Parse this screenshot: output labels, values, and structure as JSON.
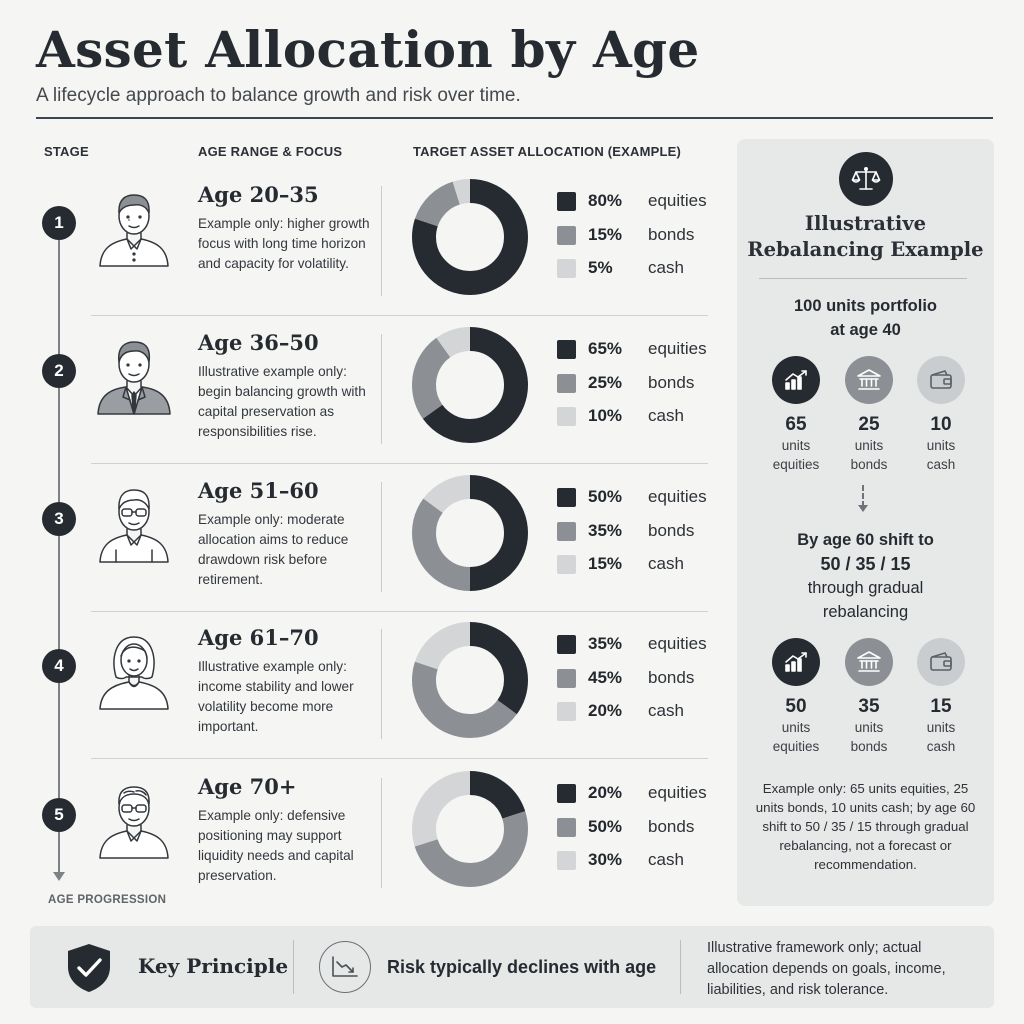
{
  "header": {
    "title": "Asset Allocation by Age",
    "subtitle": "A lifecycle approach to balance growth and risk over time."
  },
  "columns": {
    "stage": "STAGE",
    "age_range": "AGE RANGE & FOCUS",
    "allocation": "TARGET ASSET ALLOCATION (EXAMPLE)"
  },
  "timeline_label": "AGE PROGRESSION",
  "colors": {
    "equities": "#252b31",
    "bonds": "#8c9095",
    "cash": "#d3d5d7"
  },
  "stages": [
    {
      "num": "1",
      "age": "Age 20–35",
      "desc": "Example only: higher growth focus with long time horizon and capacity for volatility.",
      "equities": 80,
      "bonds": 15,
      "cash": 5,
      "avatar": "young-man-icon",
      "labels": {
        "equities": "80%",
        "bonds": "15%",
        "cash": "5%"
      }
    },
    {
      "num": "2",
      "age": "Age 36–50",
      "desc": "Illustrative example only: begin balancing growth with capital preservation as responsibilities rise.",
      "equities": 65,
      "bonds": 25,
      "cash": 10,
      "avatar": "man-in-suit-icon",
      "labels": {
        "equities": "65%",
        "bonds": "25%",
        "cash": "10%"
      }
    },
    {
      "num": "3",
      "age": "Age 51–60",
      "desc": "Example only: moderate allocation aims to reduce drawdown risk before retirement.",
      "equities": 50,
      "bonds": 35,
      "cash": 15,
      "avatar": "man-with-glasses-icon",
      "labels": {
        "equities": "50%",
        "bonds": "35%",
        "cash": "15%"
      }
    },
    {
      "num": "4",
      "age": "Age 61–70",
      "desc": "Illustrative example only: income stability and lower volatility become more important.",
      "equities": 35,
      "bonds": 45,
      "cash": 20,
      "avatar": "woman-icon",
      "labels": {
        "equities": "35%",
        "bonds": "45%",
        "cash": "20%"
      }
    },
    {
      "num": "5",
      "age": "Age 70+",
      "desc": "Example only: defensive positioning may support liquidity needs and capital preservation.",
      "equities": 20,
      "bonds": 50,
      "cash": 30,
      "avatar": "older-man-icon",
      "labels": {
        "equities": "20%",
        "bonds": "50%",
        "cash": "30%"
      }
    }
  ],
  "legend": {
    "equities": "equities",
    "bonds": "bonds",
    "cash": "cash"
  },
  "panel": {
    "icon": "scale-icon",
    "title_line1": "Illustrative",
    "title_line2": "Rebalancing Example",
    "intro_line1": "100 units portfolio",
    "intro_line2": "at age 40",
    "before": [
      {
        "num": "65",
        "unit": "units",
        "label": "equities",
        "icon": "growth-chart-icon"
      },
      {
        "num": "25",
        "unit": "units",
        "label": "bonds",
        "icon": "bank-icon"
      },
      {
        "num": "10",
        "unit": "units",
        "label": "cash",
        "icon": "wallet-icon"
      }
    ],
    "shift_line1": "By age 60 shift to",
    "shift_line2": "50 / 35 / 15",
    "shift_line3": "through gradual",
    "shift_line4": "rebalancing",
    "after": [
      {
        "num": "50",
        "unit": "units",
        "label": "equities",
        "icon": "growth-chart-icon"
      },
      {
        "num": "35",
        "unit": "units",
        "label": "bonds",
        "icon": "bank-icon"
      },
      {
        "num": "15",
        "unit": "units",
        "label": "cash",
        "icon": "wallet-icon"
      }
    ],
    "note": "Example only: 65 units equities, 25 units bonds, 10 units cash; by age 60 shift to 50 / 35 / 15 through gradual rebalancing, not a forecast or recommendation."
  },
  "footer": {
    "key_principle": "Key Principle",
    "risk": "Risk typically declines with age",
    "note": "Illustrative framework only; actual allocation depends on goals, income, liabilities, and risk tolerance."
  }
}
